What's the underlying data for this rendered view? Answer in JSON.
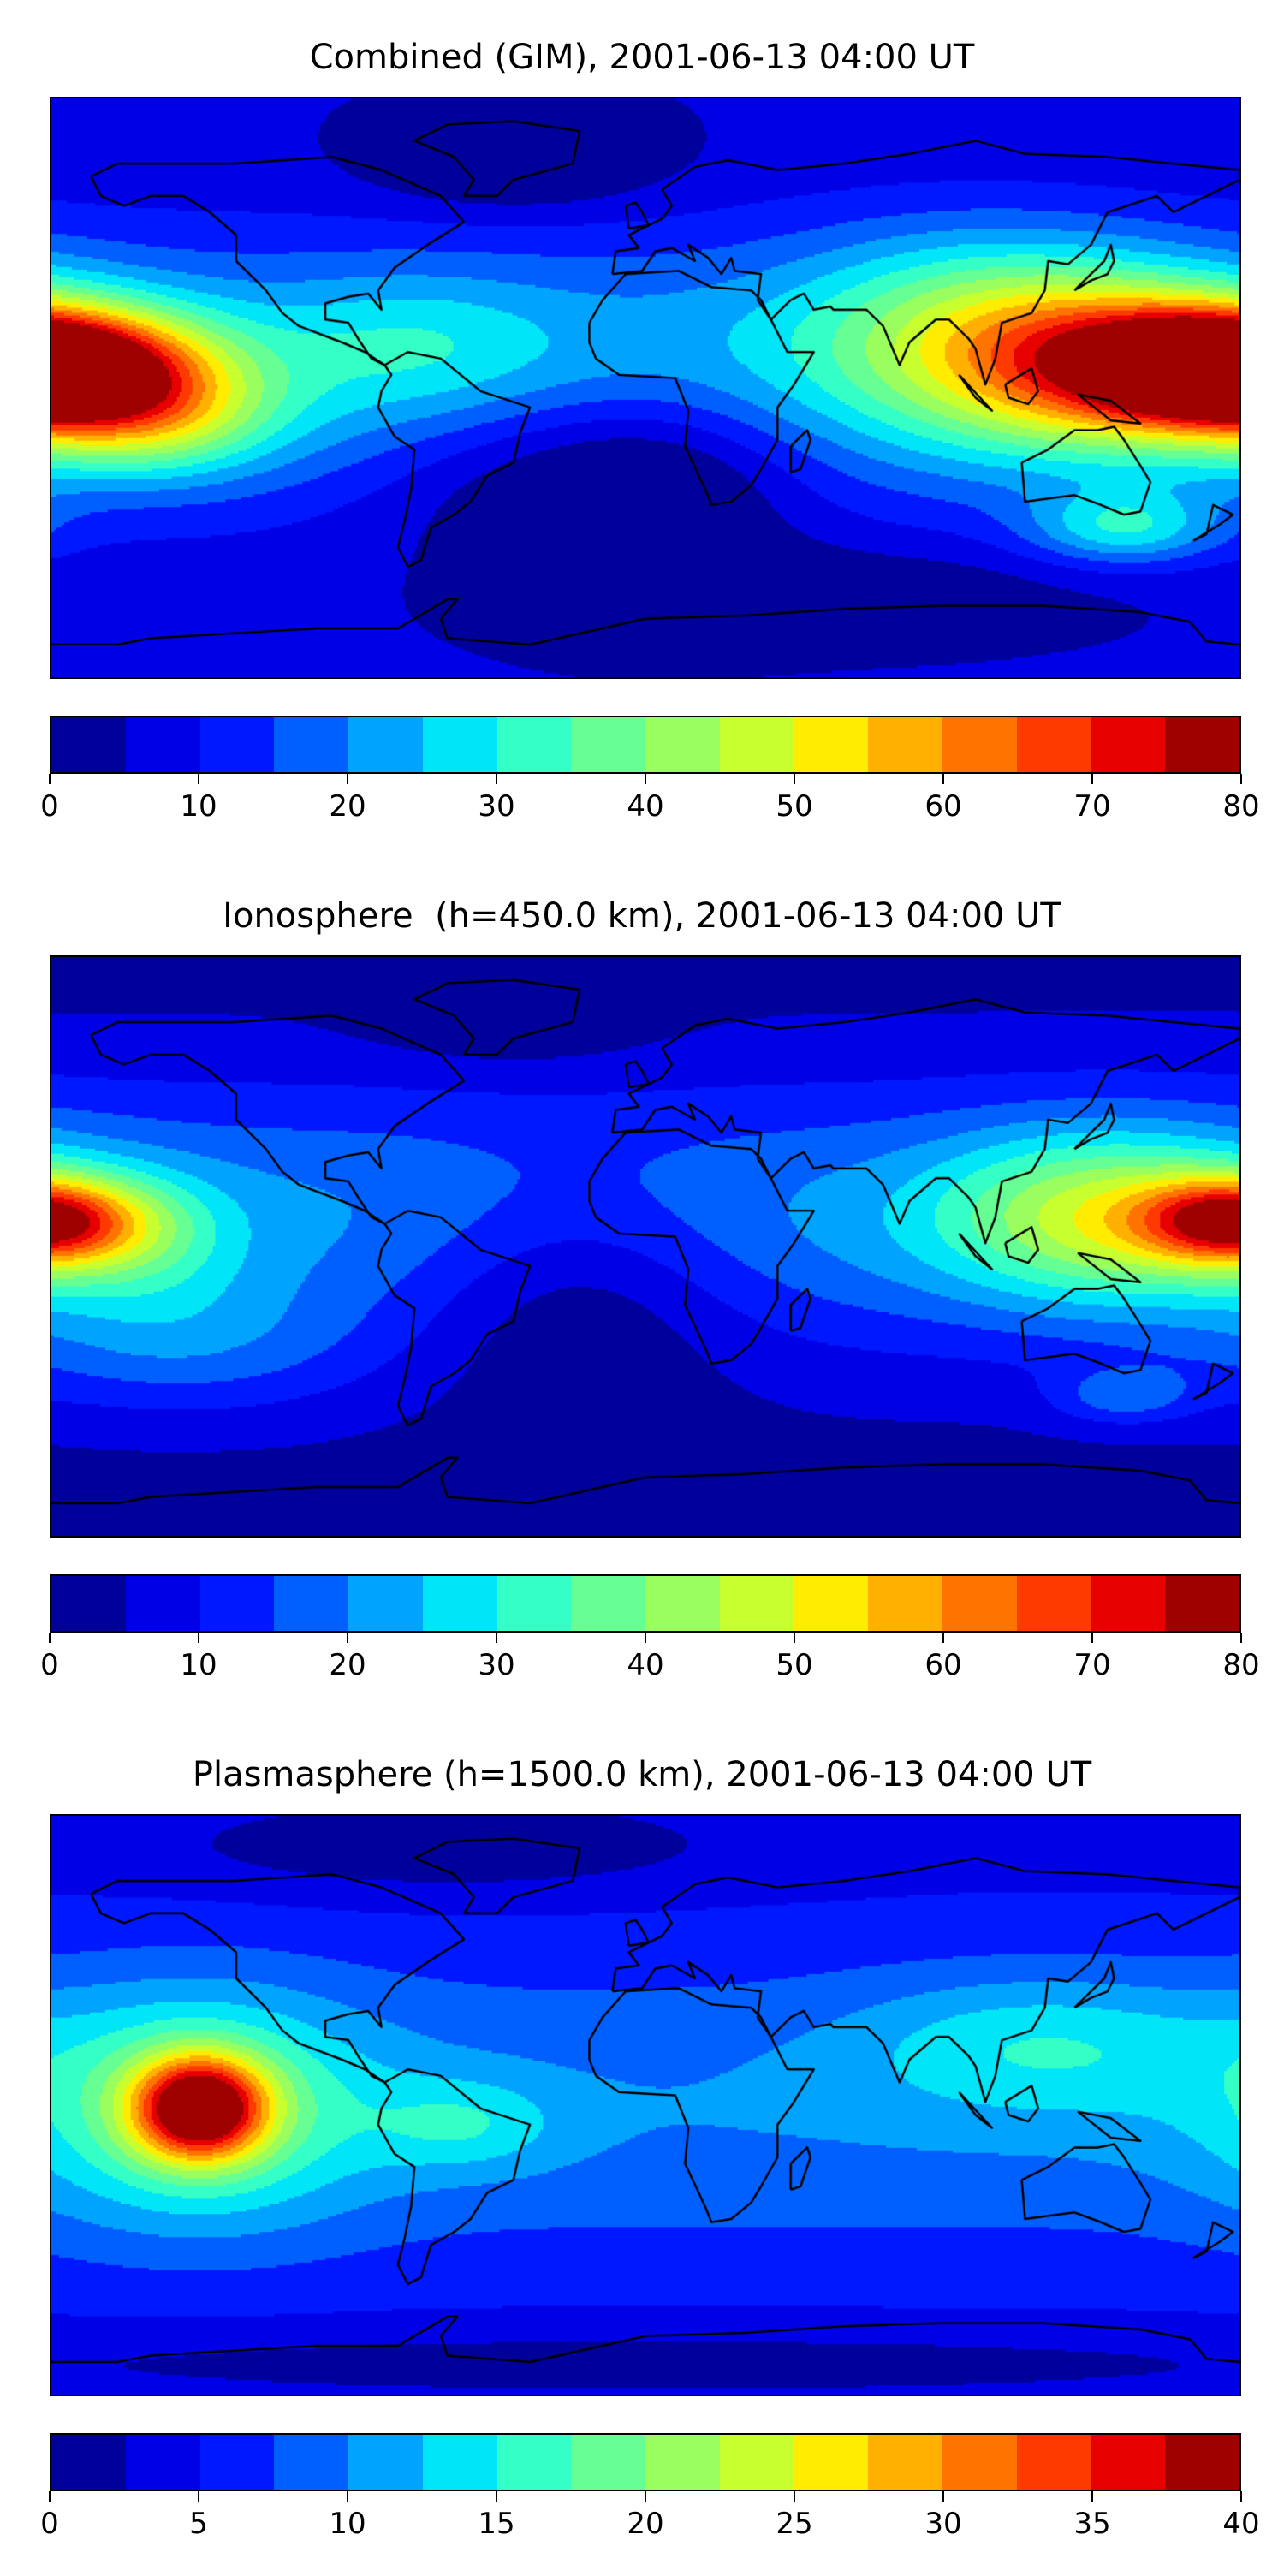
{
  "colormap": [
    "#00009a",
    "#0000e6",
    "#0018ff",
    "#0060ff",
    "#00a4ff",
    "#00e5f8",
    "#33ffc7",
    "#66ff94",
    "#9aff5e",
    "#c7ff2f",
    "#ffec00",
    "#ffb000",
    "#ff7400",
    "#ff3a00",
    "#e60000",
    "#9f0000"
  ],
  "chart_data": [
    {
      "type": "heatmap",
      "title": "Combined (GIM), 2001-06-13 04:00 UT",
      "projection": "plate carree world map with coastlines",
      "colorbar": {
        "min": 0,
        "max": 80,
        "levels": 16,
        "ticks": [
          "0",
          "10",
          "20",
          "30",
          "40",
          "50",
          "60",
          "70",
          "80"
        ]
      },
      "features": [
        {
          "region": "central Pacific near dateline, ~10N",
          "value": 78
        },
        {
          "region": "western Pacific / SE Asia, ~10N",
          "value": 70
        },
        {
          "region": "south Atlantic / southern Africa",
          "value": 5
        },
        {
          "region": "Antarctica",
          "value": 3
        }
      ]
    },
    {
      "type": "heatmap",
      "title": "Ionosphere  (h=450.0 km), 2001-06-13 04:00 UT",
      "projection": "plate carree world map with coastlines",
      "colorbar": {
        "min": 0,
        "max": 80,
        "levels": 16,
        "ticks": [
          "0",
          "10",
          "20",
          "30",
          "40",
          "50",
          "60",
          "70",
          "80"
        ]
      },
      "features": [
        {
          "region": "central Pacific near dateline, ~10N",
          "value": 57
        },
        {
          "region": "western Pacific / SE Asia, ~10N",
          "value": 55
        },
        {
          "region": "Atlantic / Africa",
          "value": 3
        }
      ]
    },
    {
      "type": "heatmap",
      "title": "Plasmasphere (h=1500.0 km), 2001-06-13 04:00 UT",
      "projection": "plate carree world map with coastlines",
      "colorbar": {
        "min": 0,
        "max": 40,
        "levels": 16,
        "ticks": [
          "0",
          "5",
          "10",
          "15",
          "20",
          "25",
          "30",
          "35",
          "40"
        ]
      },
      "features": [
        {
          "region": "eastern Pacific, ~135W equator",
          "value": 37
        },
        {
          "region": "SE Asia",
          "value": 15
        },
        {
          "region": "polar regions",
          "value": 2
        }
      ]
    }
  ]
}
